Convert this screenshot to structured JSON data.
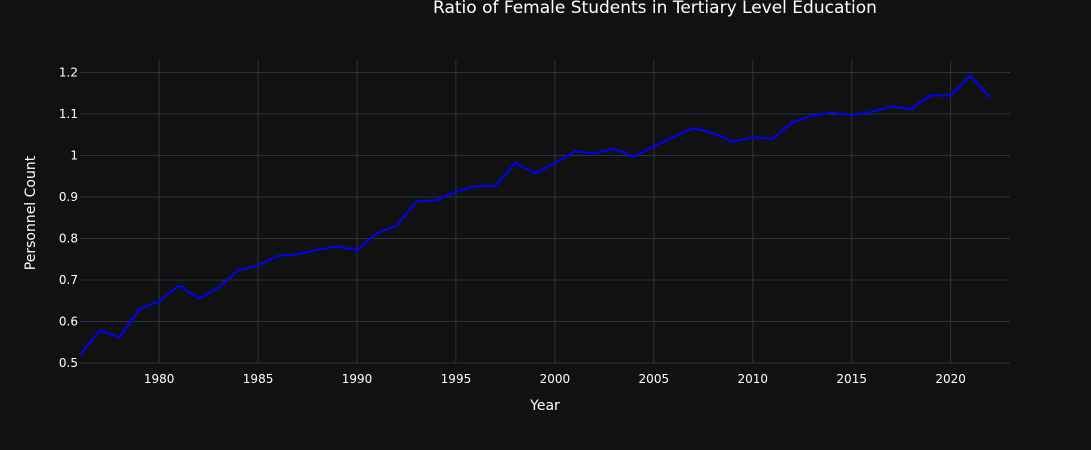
{
  "chart_data": {
    "type": "line",
    "title": "Ratio of Female Students in Tertiary Level Education",
    "xlabel": "Year",
    "ylabel": "Personnel Count",
    "xlim": [
      1976,
      2023
    ],
    "ylim": [
      0.5,
      1.23
    ],
    "xticks": [
      1980,
      1985,
      1990,
      1995,
      2000,
      2005,
      2010,
      2015,
      2020
    ],
    "yticks": [
      0.5,
      0.6,
      0.7,
      0.8,
      0.9,
      1.0,
      1.1,
      1.2
    ],
    "ytick_labels": [
      "0.5",
      "0.6",
      "0.7",
      "0.8",
      "0.9",
      "1",
      "1.1",
      "1.2"
    ],
    "grid": true,
    "colors": {
      "background": "#111111",
      "grid": "#283442",
      "line": "#0000ff"
    },
    "series": [
      {
        "x": [
          1976,
          1977,
          1978,
          1979,
          1980,
          1981,
          1982,
          1983,
          1984,
          1985,
          1986,
          1987,
          1988,
          1989,
          1990,
          1991,
          1992,
          1993,
          1994,
          1995,
          1996,
          1997,
          1998,
          1999,
          2000,
          2001,
          2002,
          2003,
          2004,
          2005,
          2006,
          2007,
          2008,
          2009,
          2010,
          2011,
          2012,
          2013,
          2014,
          2015,
          2016,
          2017,
          2018,
          2019,
          2020,
          2021,
          2022
        ],
        "values": [
          0.52,
          0.578,
          0.562,
          0.63,
          0.648,
          0.687,
          0.655,
          0.682,
          0.723,
          0.735,
          0.758,
          0.762,
          0.773,
          0.781,
          0.772,
          0.813,
          0.831,
          0.889,
          0.892,
          0.913,
          0.926,
          0.927,
          0.982,
          0.957,
          0.981,
          1.01,
          1.005,
          1.016,
          0.997,
          1.022,
          1.045,
          1.066,
          1.054,
          1.033,
          1.044,
          1.04,
          1.08,
          1.096,
          1.104,
          1.097,
          1.105,
          1.118,
          1.112,
          1.145,
          1.144,
          1.192,
          1.14
        ]
      }
    ]
  }
}
